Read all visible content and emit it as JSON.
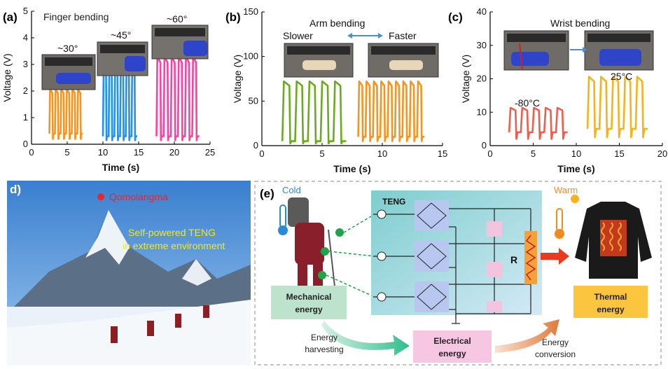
{
  "panel_labels": {
    "a": "(a)",
    "b": "(b)",
    "c": "(c)",
    "d": "d)",
    "e": "(e)"
  },
  "axis": {
    "voltage": "Voltage (V)",
    "time": "Time (s)"
  },
  "panel_a": {
    "title": "Finger bending",
    "angles": [
      "~30°",
      "~45°",
      "~60°"
    ],
    "colors": [
      "#f7931e",
      "#1e90ff",
      "#ff3fa4"
    ]
  },
  "panel_b": {
    "title": "Arm bending",
    "slower": "Slower",
    "faster": "Faster",
    "colors": [
      "#6aaa1e",
      "#f7931e"
    ]
  },
  "panel_c": {
    "title": "Wrist bending",
    "temps": [
      "-80°C",
      "25°C"
    ],
    "colors": [
      "#f25c4a",
      "#f5b21c"
    ]
  },
  "panel_d": {
    "peak": "Qomolangma",
    "caption_line1": "Self-powered TENG",
    "caption_line2": "in extreme environment"
  },
  "panel_e": {
    "cold": "Cold",
    "warm": "Warm",
    "teng": "TENG",
    "resistor": "R",
    "mechanical": [
      "Mechanical",
      "energy"
    ],
    "electrical": [
      "Electrical",
      "energy"
    ],
    "thermal": [
      "Thermal",
      "energy"
    ],
    "harvesting": [
      "Energy",
      "harvesting"
    ],
    "conversion": [
      "Energy",
      "conversion"
    ]
  },
  "chart_data": [
    {
      "type": "line",
      "title": "Finger bending",
      "xlabel": "Time (s)",
      "ylabel": "Voltage (V)",
      "xlim": [
        0,
        25
      ],
      "ylim": [
        0,
        5
      ],
      "xticks": [
        0,
        5,
        10,
        15,
        20,
        25
      ],
      "yticks": [
        0,
        1,
        2,
        3,
        4,
        5
      ],
      "series": [
        {
          "name": "~30°",
          "color": "#f7931e",
          "x_range": [
            2.5,
            7.2
          ],
          "pulses": 6,
          "peak": 2.0,
          "base": 0.4
        },
        {
          "name": "~45°",
          "color": "#1e90ff",
          "x_range": [
            10.0,
            14.8
          ],
          "pulses": 6,
          "peak": 2.7,
          "base": 0.3
        },
        {
          "name": "~60°",
          "color": "#ff3fa4",
          "x_range": [
            17.5,
            23.5
          ],
          "pulses": 6,
          "peak": 3.2,
          "base": 0.3
        }
      ]
    },
    {
      "type": "line",
      "title": "Arm bending",
      "xlabel": "Time (s)",
      "ylabel": "Voltage (V)",
      "xlim": [
        0,
        15
      ],
      "ylim": [
        0,
        150
      ],
      "xticks": [
        0,
        5,
        10,
        15
      ],
      "yticks": [
        0,
        50,
        100,
        150
      ],
      "series": [
        {
          "name": "Slower",
          "color": "#6aaa1e",
          "x_range": [
            1.7,
            7.0
          ],
          "pulses": 5,
          "peak": 70,
          "base": 5
        },
        {
          "name": "Faster",
          "color": "#f7931e",
          "x_range": [
            8.0,
            13.5
          ],
          "pulses": 9,
          "peak": 70,
          "base": 10
        }
      ]
    },
    {
      "type": "line",
      "title": "Wrist bending",
      "xlabel": "Time (s)",
      "ylabel": "Voltage (V)",
      "xlim": [
        0,
        20
      ],
      "ylim": [
        0,
        40
      ],
      "xticks": [
        0,
        5,
        10,
        15,
        20
      ],
      "yticks": [
        0,
        10,
        20,
        30,
        40
      ],
      "series": [
        {
          "name": "-80°C",
          "color": "#f25c4a",
          "x_range": [
            2.2,
            9.0
          ],
          "pulses": 5,
          "peak": 11,
          "base": 4
        },
        {
          "name": "25°C",
          "color": "#f5b21c",
          "x_range": [
            11.3,
            18.3
          ],
          "pulses": 5,
          "peak": 20,
          "base": 5
        }
      ]
    }
  ]
}
